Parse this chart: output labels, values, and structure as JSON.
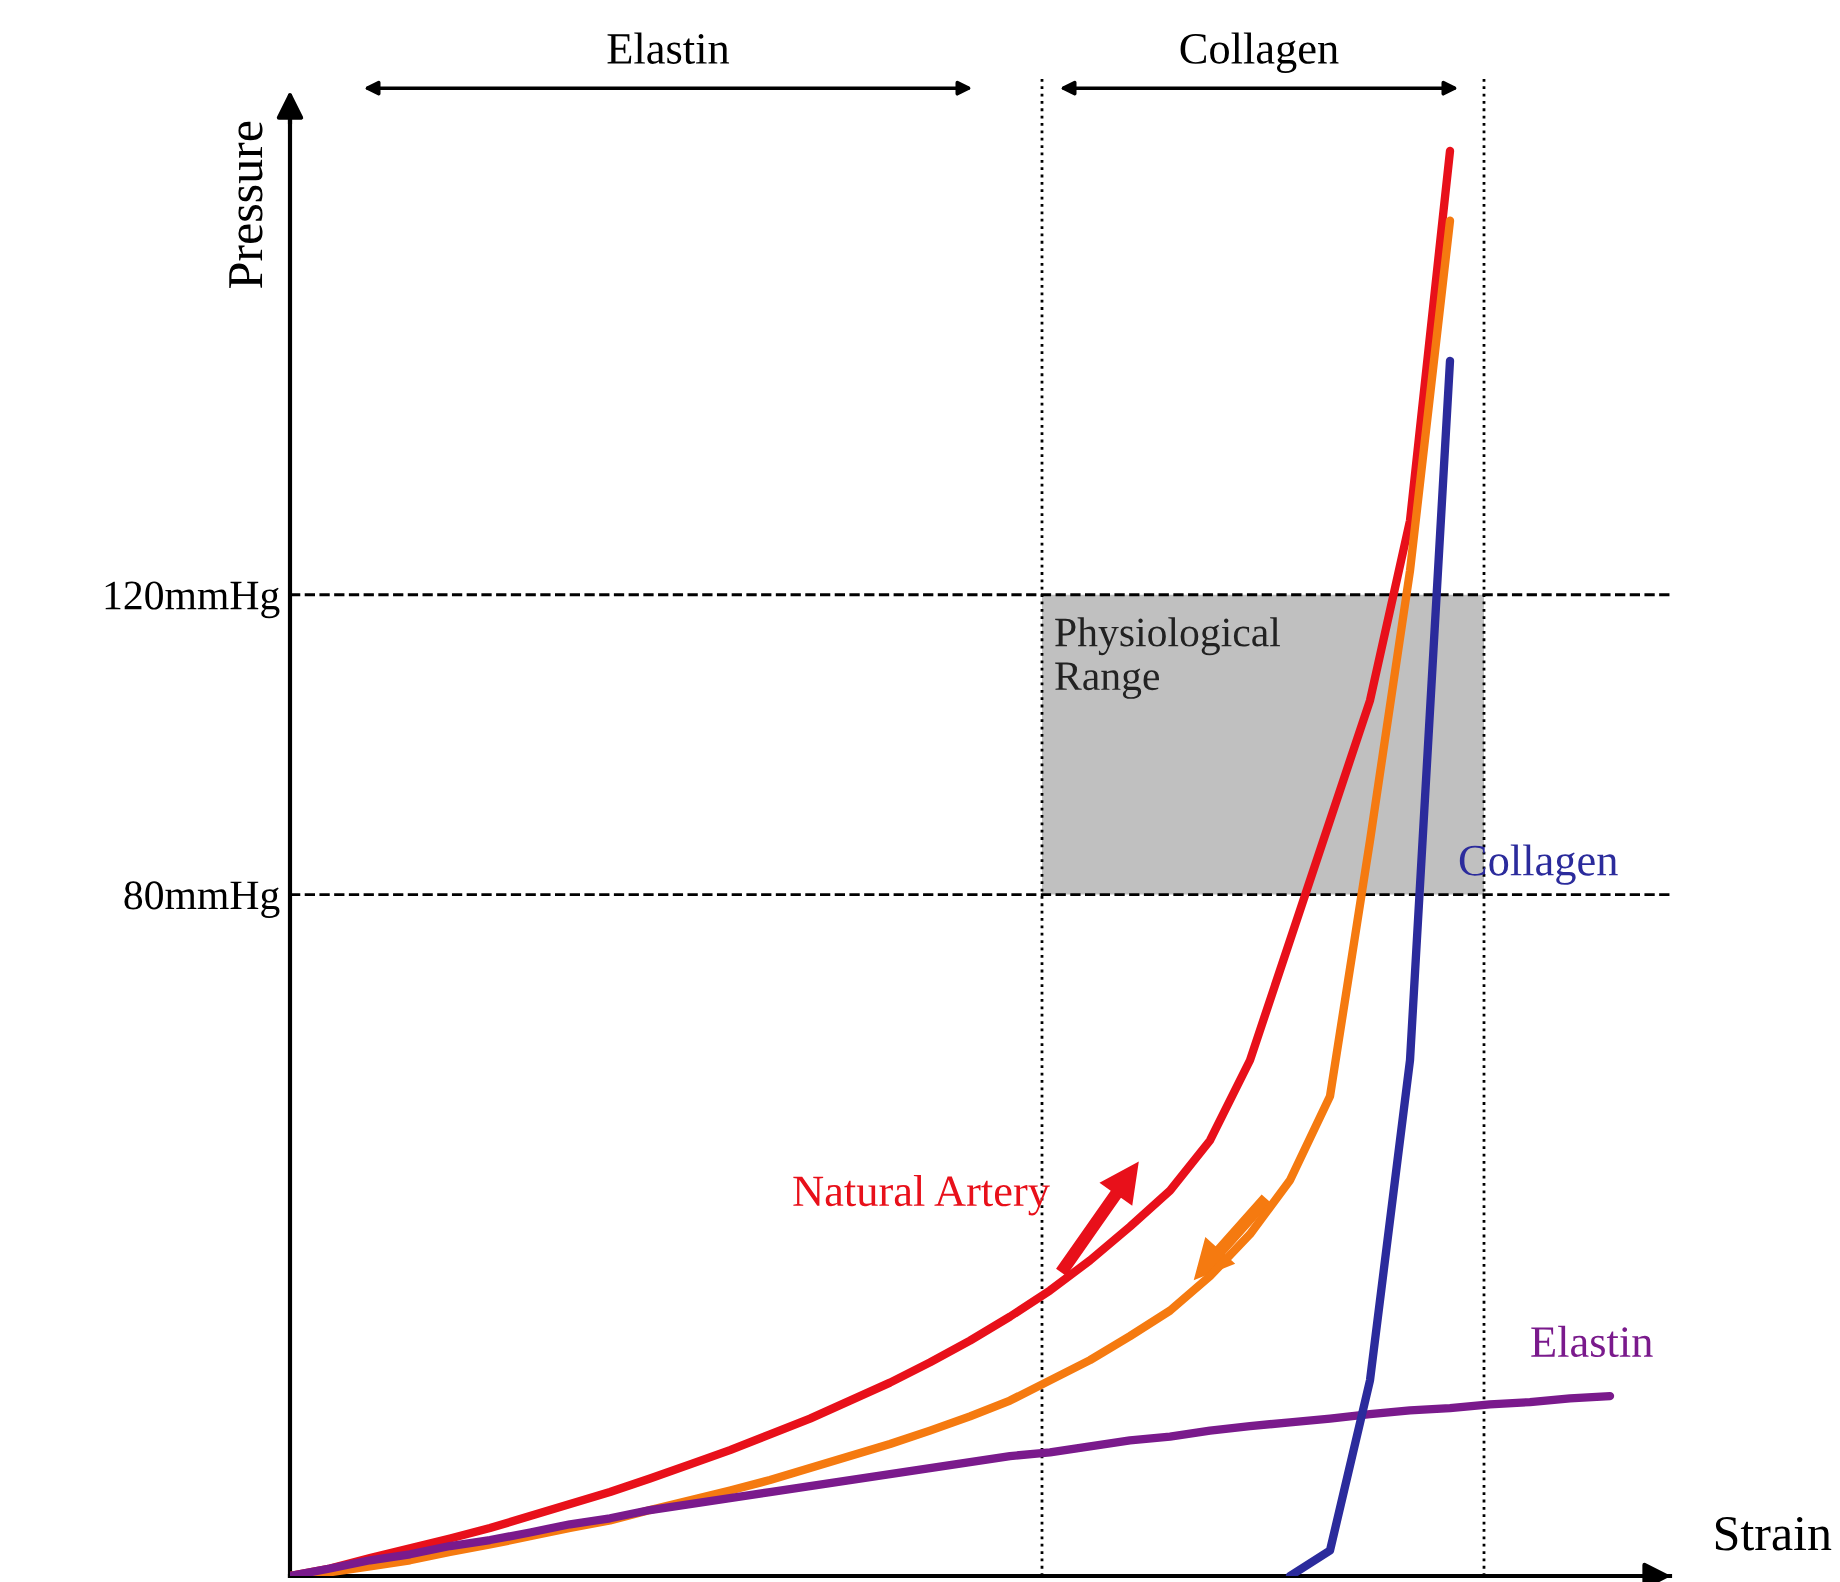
{
  "chart_data": {
    "type": "line",
    "xlabel": "Strain",
    "ylabel": "Pressure",
    "categories": [
      null,
      null,
      null,
      null,
      null,
      null,
      null,
      null,
      null,
      null,
      null,
      null,
      null,
      null,
      null,
      null,
      null,
      null,
      null,
      null,
      null,
      null,
      null,
      null,
      null,
      null,
      null,
      null,
      null,
      null,
      null,
      null,
      null,
      null
    ],
    "ylim": [
      -10.9,
      186
    ],
    "yticks": [
      {
        "value": 80,
        "label": "80mmHg"
      },
      {
        "value": 120,
        "label": "120mmHg"
      }
    ],
    "grid": false,
    "legend": false,
    "marker": "none",
    "line_style": "solid",
    "series": [
      {
        "name": "Natural Artery",
        "color": "#e8101a",
        "values": [
          -10.9,
          -9.9,
          -8.5,
          -7.2,
          -5.9,
          -4.5,
          -2.9,
          -1.3,
          0.3,
          2.1,
          4.0,
          5.9,
          8.0,
          10.1,
          12.5,
          14.9,
          17.6,
          20.5,
          23.7,
          27.2,
          31.2,
          35.7,
          40.5,
          47.2,
          57.9,
          73.9,
          89.9,
          105.9,
          129.9,
          179.2,
          null,
          null,
          null,
          null
        ]
      },
      {
        "color": "#f57a10",
        "values": [
          -10.9,
          -10.4,
          -9.6,
          -8.8,
          -7.7,
          -6.7,
          -5.6,
          -4.5,
          -3.5,
          -2.1,
          -0.8,
          0.5,
          1.9,
          3.5,
          5.1,
          6.7,
          8.5,
          10.4,
          12.5,
          15.2,
          17.9,
          21.1,
          24.5,
          29.1,
          34.7,
          41.9,
          53.1,
          87.2,
          123.2,
          169.9,
          null,
          null,
          null,
          null
        ]
      },
      {
        "name": "Elastin",
        "color": "#7a1a8c",
        "values": [
          -10.9,
          -9.9,
          -8.8,
          -8.0,
          -6.9,
          -6.1,
          -5.1,
          -4.0,
          -3.2,
          -2.1,
          -1.3,
          -0.5,
          0.3,
          1.1,
          1.9,
          2.7,
          3.5,
          4.3,
          5.1,
          5.6,
          6.4,
          7.2,
          7.7,
          8.5,
          9.1,
          9.6,
          10.1,
          10.7,
          11.2,
          11.5,
          12.0,
          12.3,
          12.8,
          13.1
        ]
      },
      {
        "name": "Collagen",
        "color": "#2b2b9c",
        "values": [
          null,
          null,
          null,
          null,
          null,
          null,
          null,
          null,
          null,
          null,
          null,
          null,
          null,
          null,
          null,
          null,
          null,
          null,
          null,
          null,
          null,
          null,
          null,
          null,
          null,
          -10.9,
          -7.5,
          15.2,
          57.9,
          151.2,
          null,
          null,
          null,
          null
        ]
      }
    ],
    "ref_lines": [
      {
        "axis": "y",
        "value": 80,
        "line_style": "dashed",
        "color": "#000000"
      },
      {
        "axis": "y",
        "value": 120,
        "line_style": "dashed",
        "color": "#000000"
      }
    ],
    "bands": [
      {
        "axis": "y",
        "from": 80,
        "to": 120,
        "label": "Physiological\nRange",
        "color": "#c0c0c0"
      }
    ],
    "annotations": [
      "Elastin",
      "Collagen"
    ]
  }
}
